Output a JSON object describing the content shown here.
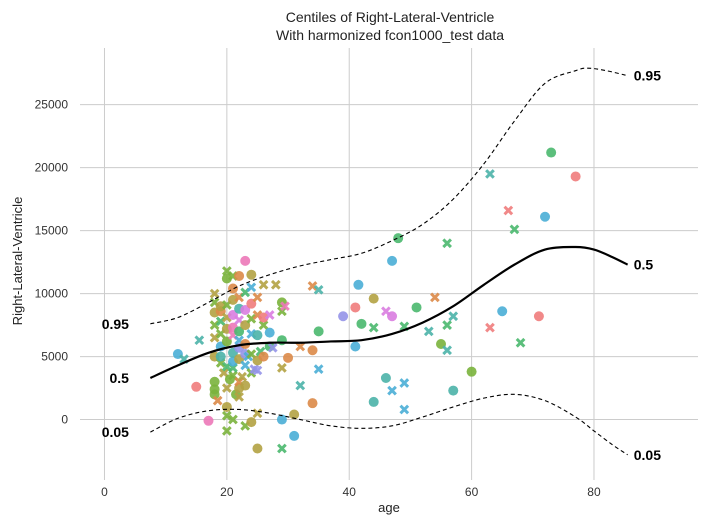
{
  "chart_data": {
    "type": "scatter",
    "title": "Centiles of Right-Lateral-Ventricle",
    "subtitle": "With harmonized fcon1000_test data",
    "xlabel": "age",
    "ylabel": "Right-Lateral-Ventricle",
    "xlim": [
      -4,
      97
    ],
    "ylim": [
      -4800,
      29500
    ],
    "xticks": [
      0,
      20,
      40,
      60,
      80
    ],
    "yticks": [
      0,
      5000,
      10000,
      15000,
      20000,
      25000
    ],
    "grid": true,
    "centiles": [
      {
        "name": "0.95",
        "style": "dashed",
        "color": "#000000",
        "x": [
          7.5,
          12,
          17,
          22,
          27,
          32,
          37,
          42,
          47,
          52,
          57,
          62,
          67,
          72,
          77,
          79,
          82,
          85.5
        ],
        "y": [
          7600,
          8100,
          9300,
          10600,
          11500,
          12200,
          12700,
          13200,
          14200,
          15500,
          17500,
          20300,
          23700,
          26700,
          27700,
          27900,
          27700,
          27300
        ]
      },
      {
        "name": "0.5",
        "style": "solid",
        "color": "#000000",
        "x": [
          7.5,
          12,
          17,
          22,
          27,
          32,
          37,
          42,
          47,
          52,
          57,
          62,
          67,
          72,
          77,
          80,
          83,
          85.5
        ],
        "y": [
          3300,
          4300,
          5300,
          5900,
          6100,
          6100,
          6200,
          6300,
          6800,
          7700,
          9000,
          10700,
          12300,
          13500,
          13700,
          13500,
          12900,
          12300
        ]
      },
      {
        "name": "0.05",
        "style": "dashed",
        "color": "#000000",
        "x": [
          7.5,
          12,
          17,
          22,
          27,
          32,
          37,
          42,
          47,
          52,
          57,
          62,
          67,
          72,
          77,
          80,
          83,
          85.5
        ],
        "y": [
          -1000,
          100,
          700,
          800,
          500,
          0,
          -500,
          -700,
          -500,
          200,
          1000,
          1700,
          2000,
          1500,
          200,
          -900,
          -2000,
          -2800
        ]
      }
    ],
    "centile_labels_left": [
      {
        "text": "0.95",
        "x": 4,
        "y": 7600
      },
      {
        "text": "0.5",
        "x": 4,
        "y": 3300
      },
      {
        "text": "0.05",
        "x": 4,
        "y": -1000
      }
    ],
    "centile_labels_right": [
      {
        "text": "0.95",
        "x": 86.5,
        "y": 27300
      },
      {
        "text": "0.5",
        "x": 86.5,
        "y": 12300
      },
      {
        "text": "0.05",
        "x": 86.5,
        "y": -2800
      }
    ],
    "marker_colors": [
      "#f07c7c",
      "#dc8a48",
      "#b3a242",
      "#7ab33c",
      "#4ab86e",
      "#4bb3a8",
      "#4aaed6",
      "#9593e8",
      "#d97de0",
      "#ec78b8"
    ],
    "points": [
      {
        "x": 12,
        "y": 5200,
        "m": "o",
        "c": 6
      },
      {
        "x": 13,
        "y": 4800,
        "m": "x",
        "c": 5
      },
      {
        "x": 15,
        "y": 2600,
        "m": "o",
        "c": 0
      },
      {
        "x": 15.5,
        "y": 6300,
        "m": "x",
        "c": 5
      },
      {
        "x": 17,
        "y": -100,
        "m": "o",
        "c": 9
      },
      {
        "x": 18,
        "y": 2000,
        "m": "o",
        "c": 3
      },
      {
        "x": 18,
        "y": 2400,
        "m": "o",
        "c": 3
      },
      {
        "x": 18,
        "y": 3000,
        "m": "o",
        "c": 3
      },
      {
        "x": 18,
        "y": 5000,
        "m": "o",
        "c": 2
      },
      {
        "x": 18,
        "y": 6500,
        "m": "x",
        "c": 2
      },
      {
        "x": 18,
        "y": 7500,
        "m": "x",
        "c": 3
      },
      {
        "x": 18,
        "y": 8500,
        "m": "o",
        "c": 2
      },
      {
        "x": 18,
        "y": 9300,
        "m": "x",
        "c": 3
      },
      {
        "x": 18,
        "y": 10000,
        "m": "x",
        "c": 2
      },
      {
        "x": 18.5,
        "y": 1500,
        "m": "x",
        "c": 1
      },
      {
        "x": 19,
        "y": 4500,
        "m": "x",
        "c": 3
      },
      {
        "x": 19,
        "y": 5000,
        "m": "o",
        "c": 5
      },
      {
        "x": 19,
        "y": 5800,
        "m": "o",
        "c": 6
      },
      {
        "x": 19,
        "y": 6800,
        "m": "x",
        "c": 3
      },
      {
        "x": 19,
        "y": 7800,
        "m": "x",
        "c": 4
      },
      {
        "x": 19,
        "y": 8600,
        "m": "o",
        "c": 1
      },
      {
        "x": 19,
        "y": 9000,
        "m": "o",
        "c": 2
      },
      {
        "x": 19.5,
        "y": 3700,
        "m": "x",
        "c": 2
      },
      {
        "x": 20,
        "y": -900,
        "m": "x",
        "c": 3
      },
      {
        "x": 20,
        "y": 300,
        "m": "x",
        "c": 3
      },
      {
        "x": 20,
        "y": 1000,
        "m": "o",
        "c": 2
      },
      {
        "x": 20,
        "y": 2500,
        "m": "x",
        "c": 2
      },
      {
        "x": 20,
        "y": 4200,
        "m": "x",
        "c": 4
      },
      {
        "x": 20,
        "y": 6200,
        "m": "o",
        "c": 3
      },
      {
        "x": 20,
        "y": 7200,
        "m": "o",
        "c": 2
      },
      {
        "x": 20,
        "y": 8100,
        "m": "x",
        "c": 2
      },
      {
        "x": 20,
        "y": 9100,
        "m": "x",
        "c": 3
      },
      {
        "x": 20,
        "y": 11200,
        "m": "o",
        "c": 3
      },
      {
        "x": 20,
        "y": 11800,
        "m": "x",
        "c": 3
      },
      {
        "x": 20.5,
        "y": 3200,
        "m": "o",
        "c": 3
      },
      {
        "x": 21,
        "y": 0,
        "m": "x",
        "c": 3
      },
      {
        "x": 21,
        "y": 3500,
        "m": "x",
        "c": 3
      },
      {
        "x": 21,
        "y": 4100,
        "m": "x",
        "c": 4
      },
      {
        "x": 21,
        "y": 4600,
        "m": "o",
        "c": 6
      },
      {
        "x": 21,
        "y": 5300,
        "m": "o",
        "c": 5
      },
      {
        "x": 21,
        "y": 6700,
        "m": "x",
        "c": 9
      },
      {
        "x": 21,
        "y": 7300,
        "m": "o",
        "c": 9
      },
      {
        "x": 21,
        "y": 8300,
        "m": "o",
        "c": 8
      },
      {
        "x": 21,
        "y": 9500,
        "m": "o",
        "c": 2
      },
      {
        "x": 21,
        "y": 10400,
        "m": "o",
        "c": 1
      },
      {
        "x": 21,
        "y": 11400,
        "m": "x",
        "c": 3
      },
      {
        "x": 21.5,
        "y": 2000,
        "m": "o",
        "c": 3
      },
      {
        "x": 22,
        "y": 1800,
        "m": "x",
        "c": 2
      },
      {
        "x": 22,
        "y": 2500,
        "m": "o",
        "c": 2
      },
      {
        "x": 22,
        "y": 3000,
        "m": "x",
        "c": 1
      },
      {
        "x": 22,
        "y": 4800,
        "m": "o",
        "c": 2
      },
      {
        "x": 22,
        "y": 5700,
        "m": "o",
        "c": 7
      },
      {
        "x": 22,
        "y": 6300,
        "m": "x",
        "c": 6
      },
      {
        "x": 22,
        "y": 7000,
        "m": "o",
        "c": 4
      },
      {
        "x": 22,
        "y": 7900,
        "m": "x",
        "c": 8
      },
      {
        "x": 22,
        "y": 8800,
        "m": "o",
        "c": 5
      },
      {
        "x": 22,
        "y": 9700,
        "m": "x",
        "c": 1
      },
      {
        "x": 22,
        "y": 11400,
        "m": "o",
        "c": 1
      },
      {
        "x": 22.5,
        "y": 3400,
        "m": "x",
        "c": 2
      },
      {
        "x": 23,
        "y": -500,
        "m": "x",
        "c": 3
      },
      {
        "x": 23,
        "y": 2700,
        "m": "o",
        "c": 2
      },
      {
        "x": 23,
        "y": 4300,
        "m": "x",
        "c": 6
      },
      {
        "x": 23,
        "y": 5200,
        "m": "o",
        "c": 7
      },
      {
        "x": 23,
        "y": 6000,
        "m": "o",
        "c": 1
      },
      {
        "x": 23,
        "y": 7500,
        "m": "o",
        "c": 2
      },
      {
        "x": 23,
        "y": 8700,
        "m": "o",
        "c": 8
      },
      {
        "x": 23,
        "y": 10100,
        "m": "x",
        "c": 4
      },
      {
        "x": 23,
        "y": 12600,
        "m": "o",
        "c": 9
      },
      {
        "x": 23.5,
        "y": 5000,
        "m": "x",
        "c": 6
      },
      {
        "x": 24,
        "y": -200,
        "m": "o",
        "c": 2
      },
      {
        "x": 24,
        "y": 3700,
        "m": "x",
        "c": 3
      },
      {
        "x": 24,
        "y": 5200,
        "m": "x",
        "c": 3
      },
      {
        "x": 24,
        "y": 6800,
        "m": "x",
        "c": 6
      },
      {
        "x": 24,
        "y": 8000,
        "m": "x",
        "c": 3
      },
      {
        "x": 24,
        "y": 9200,
        "m": "o",
        "c": 0
      },
      {
        "x": 24,
        "y": 10500,
        "m": "x",
        "c": 6
      },
      {
        "x": 24,
        "y": 11500,
        "m": "o",
        "c": 2
      },
      {
        "x": 24.5,
        "y": 4000,
        "m": "x",
        "c": 7
      },
      {
        "x": 25,
        "y": -2300,
        "m": "o",
        "c": 2
      },
      {
        "x": 25,
        "y": 500,
        "m": "x",
        "c": 2
      },
      {
        "x": 25,
        "y": 3900,
        "m": "x",
        "c": 7
      },
      {
        "x": 25,
        "y": 4700,
        "m": "o",
        "c": 2
      },
      {
        "x": 25,
        "y": 6700,
        "m": "o",
        "c": 5
      },
      {
        "x": 25,
        "y": 8300,
        "m": "x",
        "c": 1
      },
      {
        "x": 25,
        "y": 9700,
        "m": "x",
        "c": 1
      },
      {
        "x": 25.5,
        "y": 5400,
        "m": "x",
        "c": 4
      },
      {
        "x": 26,
        "y": 5000,
        "m": "o",
        "c": 1
      },
      {
        "x": 26,
        "y": 7500,
        "m": "x",
        "c": 3
      },
      {
        "x": 26,
        "y": 8100,
        "m": "o",
        "c": 0
      },
      {
        "x": 26,
        "y": 10700,
        "m": "x",
        "c": 2
      },
      {
        "x": 27,
        "y": 5800,
        "m": "o",
        "c": 4
      },
      {
        "x": 27,
        "y": 6900,
        "m": "o",
        "c": 6
      },
      {
        "x": 27,
        "y": 8300,
        "m": "x",
        "c": 8
      },
      {
        "x": 27.5,
        "y": 5700,
        "m": "x",
        "c": 7
      },
      {
        "x": 28,
        "y": 10700,
        "m": "x",
        "c": 2
      },
      {
        "x": 29,
        "y": -2300,
        "m": "x",
        "c": 4
      },
      {
        "x": 29,
        "y": 0,
        "m": "o",
        "c": 6
      },
      {
        "x": 29,
        "y": 4100,
        "m": "x",
        "c": 2
      },
      {
        "x": 29,
        "y": 6300,
        "m": "o",
        "c": 4
      },
      {
        "x": 29,
        "y": 8600,
        "m": "x",
        "c": 3
      },
      {
        "x": 29,
        "y": 9300,
        "m": "o",
        "c": 3
      },
      {
        "x": 29.5,
        "y": 9000,
        "m": "x",
        "c": 9
      },
      {
        "x": 30,
        "y": 4900,
        "m": "o",
        "c": 1
      },
      {
        "x": 31,
        "y": -1300,
        "m": "o",
        "c": 6
      },
      {
        "x": 31,
        "y": 400,
        "m": "o",
        "c": 2
      },
      {
        "x": 32,
        "y": 2700,
        "m": "x",
        "c": 5
      },
      {
        "x": 32,
        "y": 5800,
        "m": "x",
        "c": 1
      },
      {
        "x": 34,
        "y": 1300,
        "m": "o",
        "c": 1
      },
      {
        "x": 34,
        "y": 5500,
        "m": "o",
        "c": 1
      },
      {
        "x": 34,
        "y": 10600,
        "m": "x",
        "c": 1
      },
      {
        "x": 35,
        "y": 4000,
        "m": "x",
        "c": 6
      },
      {
        "x": 35,
        "y": 7000,
        "m": "o",
        "c": 4
      },
      {
        "x": 35,
        "y": 10300,
        "m": "x",
        "c": 5
      },
      {
        "x": 39,
        "y": 8200,
        "m": "o",
        "c": 7
      },
      {
        "x": 41,
        "y": 5800,
        "m": "o",
        "c": 6
      },
      {
        "x": 41,
        "y": 8900,
        "m": "o",
        "c": 0
      },
      {
        "x": 41.5,
        "y": 10700,
        "m": "o",
        "c": 6
      },
      {
        "x": 42,
        "y": 7600,
        "m": "o",
        "c": 4
      },
      {
        "x": 44,
        "y": 1400,
        "m": "o",
        "c": 5
      },
      {
        "x": 44,
        "y": 7300,
        "m": "x",
        "c": 4
      },
      {
        "x": 44,
        "y": 9600,
        "m": "o",
        "c": 2
      },
      {
        "x": 46,
        "y": 3300,
        "m": "o",
        "c": 5
      },
      {
        "x": 46,
        "y": 8600,
        "m": "x",
        "c": 8
      },
      {
        "x": 47,
        "y": 2300,
        "m": "x",
        "c": 6
      },
      {
        "x": 47,
        "y": 8200,
        "m": "o",
        "c": 8
      },
      {
        "x": 47,
        "y": 12600,
        "m": "o",
        "c": 6
      },
      {
        "x": 48,
        "y": 14400,
        "m": "o",
        "c": 4
      },
      {
        "x": 49,
        "y": 800,
        "m": "x",
        "c": 6
      },
      {
        "x": 49,
        "y": 2900,
        "m": "x",
        "c": 6
      },
      {
        "x": 49,
        "y": 7400,
        "m": "x",
        "c": 4
      },
      {
        "x": 51,
        "y": 8900,
        "m": "o",
        "c": 4
      },
      {
        "x": 53,
        "y": 7000,
        "m": "x",
        "c": 5
      },
      {
        "x": 54,
        "y": 9700,
        "m": "x",
        "c": 1
      },
      {
        "x": 55,
        "y": 6000,
        "m": "o",
        "c": 3
      },
      {
        "x": 56,
        "y": 5500,
        "m": "x",
        "c": 5
      },
      {
        "x": 56,
        "y": 7500,
        "m": "x",
        "c": 4
      },
      {
        "x": 56,
        "y": 14000,
        "m": "x",
        "c": 4
      },
      {
        "x": 57,
        "y": 2300,
        "m": "o",
        "c": 5
      },
      {
        "x": 57,
        "y": 8200,
        "m": "x",
        "c": 5
      },
      {
        "x": 60,
        "y": 3800,
        "m": "o",
        "c": 3
      },
      {
        "x": 63,
        "y": 7300,
        "m": "x",
        "c": 0
      },
      {
        "x": 63,
        "y": 19500,
        "m": "x",
        "c": 5
      },
      {
        "x": 65,
        "y": 8600,
        "m": "o",
        "c": 6
      },
      {
        "x": 66,
        "y": 16600,
        "m": "x",
        "c": 0
      },
      {
        "x": 67,
        "y": 15100,
        "m": "x",
        "c": 4
      },
      {
        "x": 68,
        "y": 6100,
        "m": "x",
        "c": 4
      },
      {
        "x": 71,
        "y": 8200,
        "m": "o",
        "c": 0
      },
      {
        "x": 72,
        "y": 16100,
        "m": "o",
        "c": 6
      },
      {
        "x": 73,
        "y": 21200,
        "m": "o",
        "c": 4
      },
      {
        "x": 77,
        "y": 19300,
        "m": "o",
        "c": 0
      }
    ]
  }
}
